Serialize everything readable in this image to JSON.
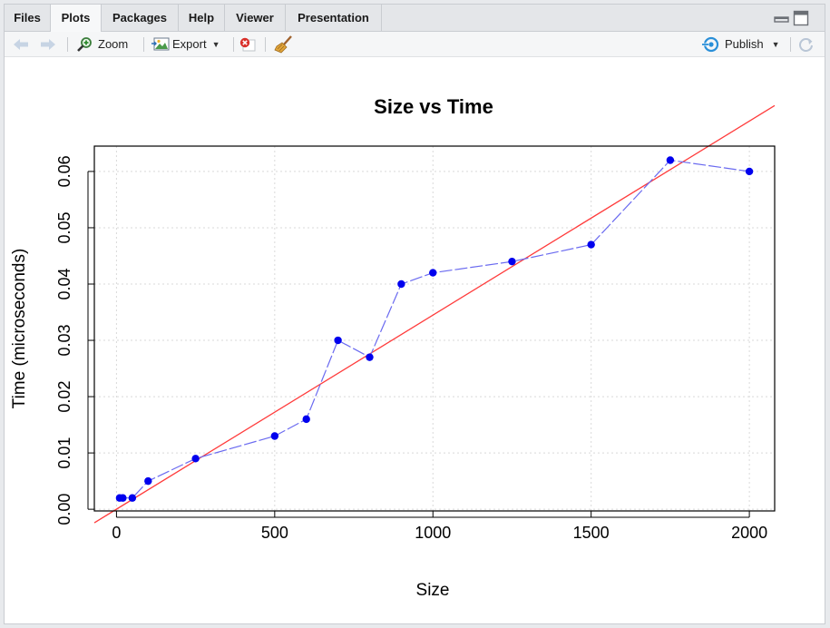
{
  "tabs": [
    {
      "label": "Files",
      "active": false
    },
    {
      "label": "Plots",
      "active": true
    },
    {
      "label": "Packages",
      "active": false
    },
    {
      "label": "Help",
      "active": false
    },
    {
      "label": "Viewer",
      "active": false
    },
    {
      "label": "Presentation",
      "active": false
    }
  ],
  "toolbar": {
    "zoom_label": "Zoom",
    "export_label": "Export",
    "publish_label": "Publish"
  },
  "icons": {
    "back": "arrow-left-icon",
    "forward": "arrow-right-icon",
    "zoom": "magnify-icon",
    "export": "image-export-icon",
    "remove": "remove-plot-icon",
    "clear": "broom-icon",
    "publish": "publish-icon",
    "refresh": "refresh-icon",
    "minimize": "minimize-icon",
    "maximize": "maximize-icon"
  },
  "colors": {
    "points": "#0000ee",
    "line": "#6a6af0",
    "fit": "#ff3b3b",
    "grid": "#d9d9d9"
  },
  "chart_data": {
    "type": "scatter",
    "title": "Size vs Time",
    "xlabel": "Size",
    "ylabel": "Time (microseconds)",
    "xlim": [
      -70,
      2080
    ],
    "ylim": [
      -0.0003,
      0.0645
    ],
    "xticks": [
      0,
      500,
      1000,
      1500,
      2000
    ],
    "yticks": [
      0.0,
      0.01,
      0.02,
      0.03,
      0.04,
      0.05,
      0.06
    ],
    "ytick_labels": [
      "0.00",
      "0.01",
      "0.02",
      "0.03",
      "0.04",
      "0.05",
      "0.06"
    ],
    "grid": true,
    "series": [
      {
        "type": "line+points",
        "x": [
          10,
          20,
          50,
          100,
          250,
          500,
          600,
          700,
          800,
          900,
          1000,
          1250,
          1500,
          1750,
          2000
        ],
        "y": [
          0.002,
          0.002,
          0.002,
          0.005,
          0.009,
          0.013,
          0.016,
          0.03,
          0.027,
          0.04,
          0.042,
          0.044,
          0.047,
          0.062,
          0.06
        ]
      },
      {
        "type": "regression-line",
        "x": [
          -70,
          2080
        ],
        "y": [
          -0.0024,
          0.0717
        ]
      }
    ]
  }
}
